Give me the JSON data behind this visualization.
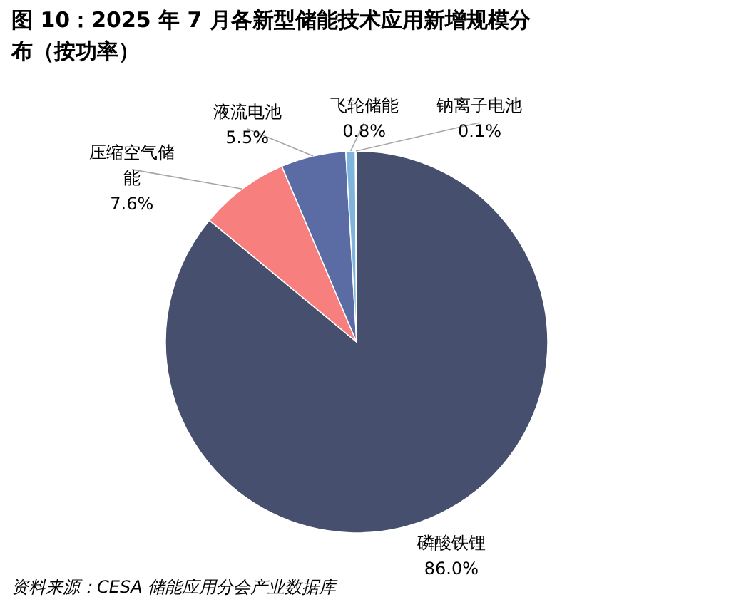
{
  "chart_data": {
    "type": "pie",
    "title": "图 10：2025 年 7 月各新型储能技术应用新增规模分布（按功率）",
    "categories": [
      "磷酸铁锂",
      "压缩空气储能",
      "液流电池",
      "飞轮储能",
      "钠离子电池"
    ],
    "values": [
      86.0,
      7.6,
      5.5,
      0.8,
      0.1
    ],
    "value_labels": [
      "86.0%",
      "7.6%",
      "5.5%",
      "0.8%",
      "0.1%"
    ],
    "colors": [
      "#474f6e",
      "#f77f7e",
      "#5b6ba4",
      "#7fb5dc",
      "#2a9fb3"
    ],
    "legend": false,
    "annotations": [
      "资料来源：CESA 储能应用分会产业数据库"
    ]
  }
}
